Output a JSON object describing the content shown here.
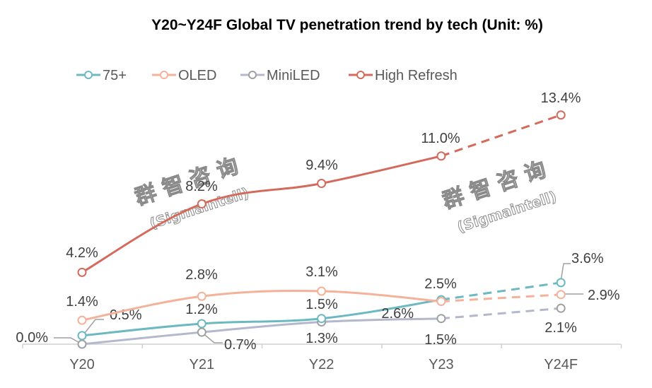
{
  "chart_data": {
    "type": "line",
    "title": "Y20~Y24F Global TV penetration trend by tech (Unit: %)",
    "xlabel": "",
    "ylabel": "",
    "categories": [
      "Y20",
      "Y21",
      "Y22",
      "Y23",
      "Y24F"
    ],
    "forecast_from_index": 3,
    "ylim": [
      0,
      14
    ],
    "grid": false,
    "legend": "top-left",
    "series": [
      {
        "name": "75+",
        "color": "#6cb9c2",
        "values": [
          0.5,
          1.2,
          1.5,
          2.6,
          3.6
        ],
        "labels": [
          "0.5%",
          "1.2%",
          "1.5%",
          "2.6%",
          "3.6%"
        ]
      },
      {
        "name": "OLED",
        "color": "#f4b29b",
        "values": [
          1.4,
          2.8,
          3.1,
          2.5,
          2.9
        ],
        "labels": [
          "1.4%",
          "2.8%",
          "3.1%",
          "2.5%",
          "2.9%"
        ]
      },
      {
        "name": "MiniLED",
        "color": "#b4b8cc",
        "values": [
          0.0,
          0.7,
          1.3,
          1.5,
          2.1
        ],
        "labels": [
          "0.0%",
          "0.7%",
          "1.3%",
          "1.5%",
          "2.1%"
        ]
      },
      {
        "name": "High Refresh",
        "color": "#d46a5c",
        "values": [
          4.2,
          8.2,
          9.4,
          11.0,
          13.4
        ],
        "labels": [
          "4.2%",
          "8.2%",
          "9.4%",
          "11.0%",
          "13.4%"
        ]
      }
    ],
    "watermark": {
      "cn": "群 智 咨 询",
      "en": "(Sigmaintell)"
    }
  }
}
